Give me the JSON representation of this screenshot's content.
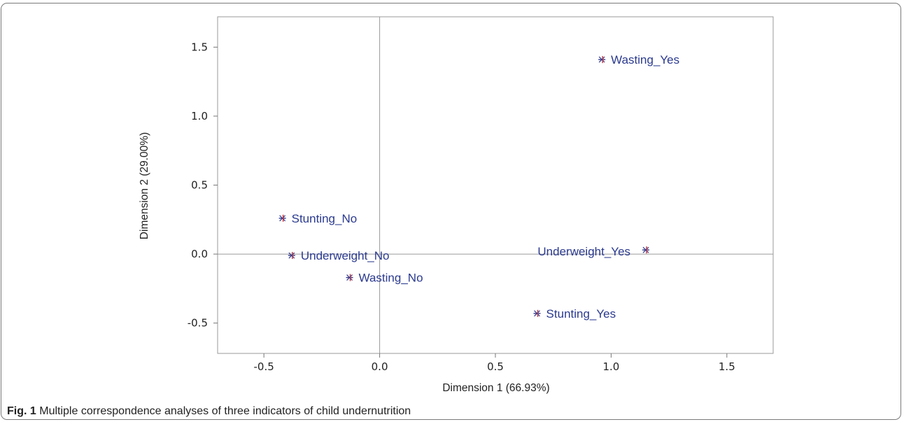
{
  "chart_data": {
    "type": "scatter",
    "xlabel": "Dimension 1 (66.93%)",
    "ylabel": "Dimension 2 (29.00%)",
    "xlim": [
      -0.7,
      1.7
    ],
    "ylim": [
      -0.72,
      1.72
    ],
    "xticks": [
      "-0.5",
      "0.0",
      "0.5",
      "1.0",
      "1.5"
    ],
    "xtick_values": [
      -0.5,
      0.0,
      0.5,
      1.0,
      1.5
    ],
    "yticks": [
      "1.5",
      "1.0",
      "0.5",
      "0.0",
      "-0.5"
    ],
    "ytick_values": [
      1.5,
      1.0,
      0.5,
      0.0,
      -0.5
    ],
    "reference_lines": {
      "x": 0.0,
      "y": 0.0
    },
    "grid": false,
    "legend": "none",
    "points": [
      {
        "label": "Wasting_Yes",
        "x": 0.96,
        "y": 1.41,
        "label_side": "right"
      },
      {
        "label": "Stunting_No",
        "x": -0.42,
        "y": 0.26,
        "label_side": "right"
      },
      {
        "label": "Underweight_No",
        "x": -0.38,
        "y": -0.01,
        "label_side": "right"
      },
      {
        "label": "Underweight_Yes",
        "x": 1.15,
        "y": 0.03,
        "label_side": "left"
      },
      {
        "label": "Wasting_No",
        "x": -0.13,
        "y": -0.17,
        "label_side": "right"
      },
      {
        "label": "Stunting_Yes",
        "x": 0.68,
        "y": -0.43,
        "label_side": "right"
      }
    ],
    "marker_colors": {
      "primary": "#2b3a8f",
      "secondary": "#cc2b2b"
    }
  },
  "caption": {
    "label": "Fig. 1",
    "text": "Multiple correspondence analyses of three indicators of child undernutrition"
  }
}
